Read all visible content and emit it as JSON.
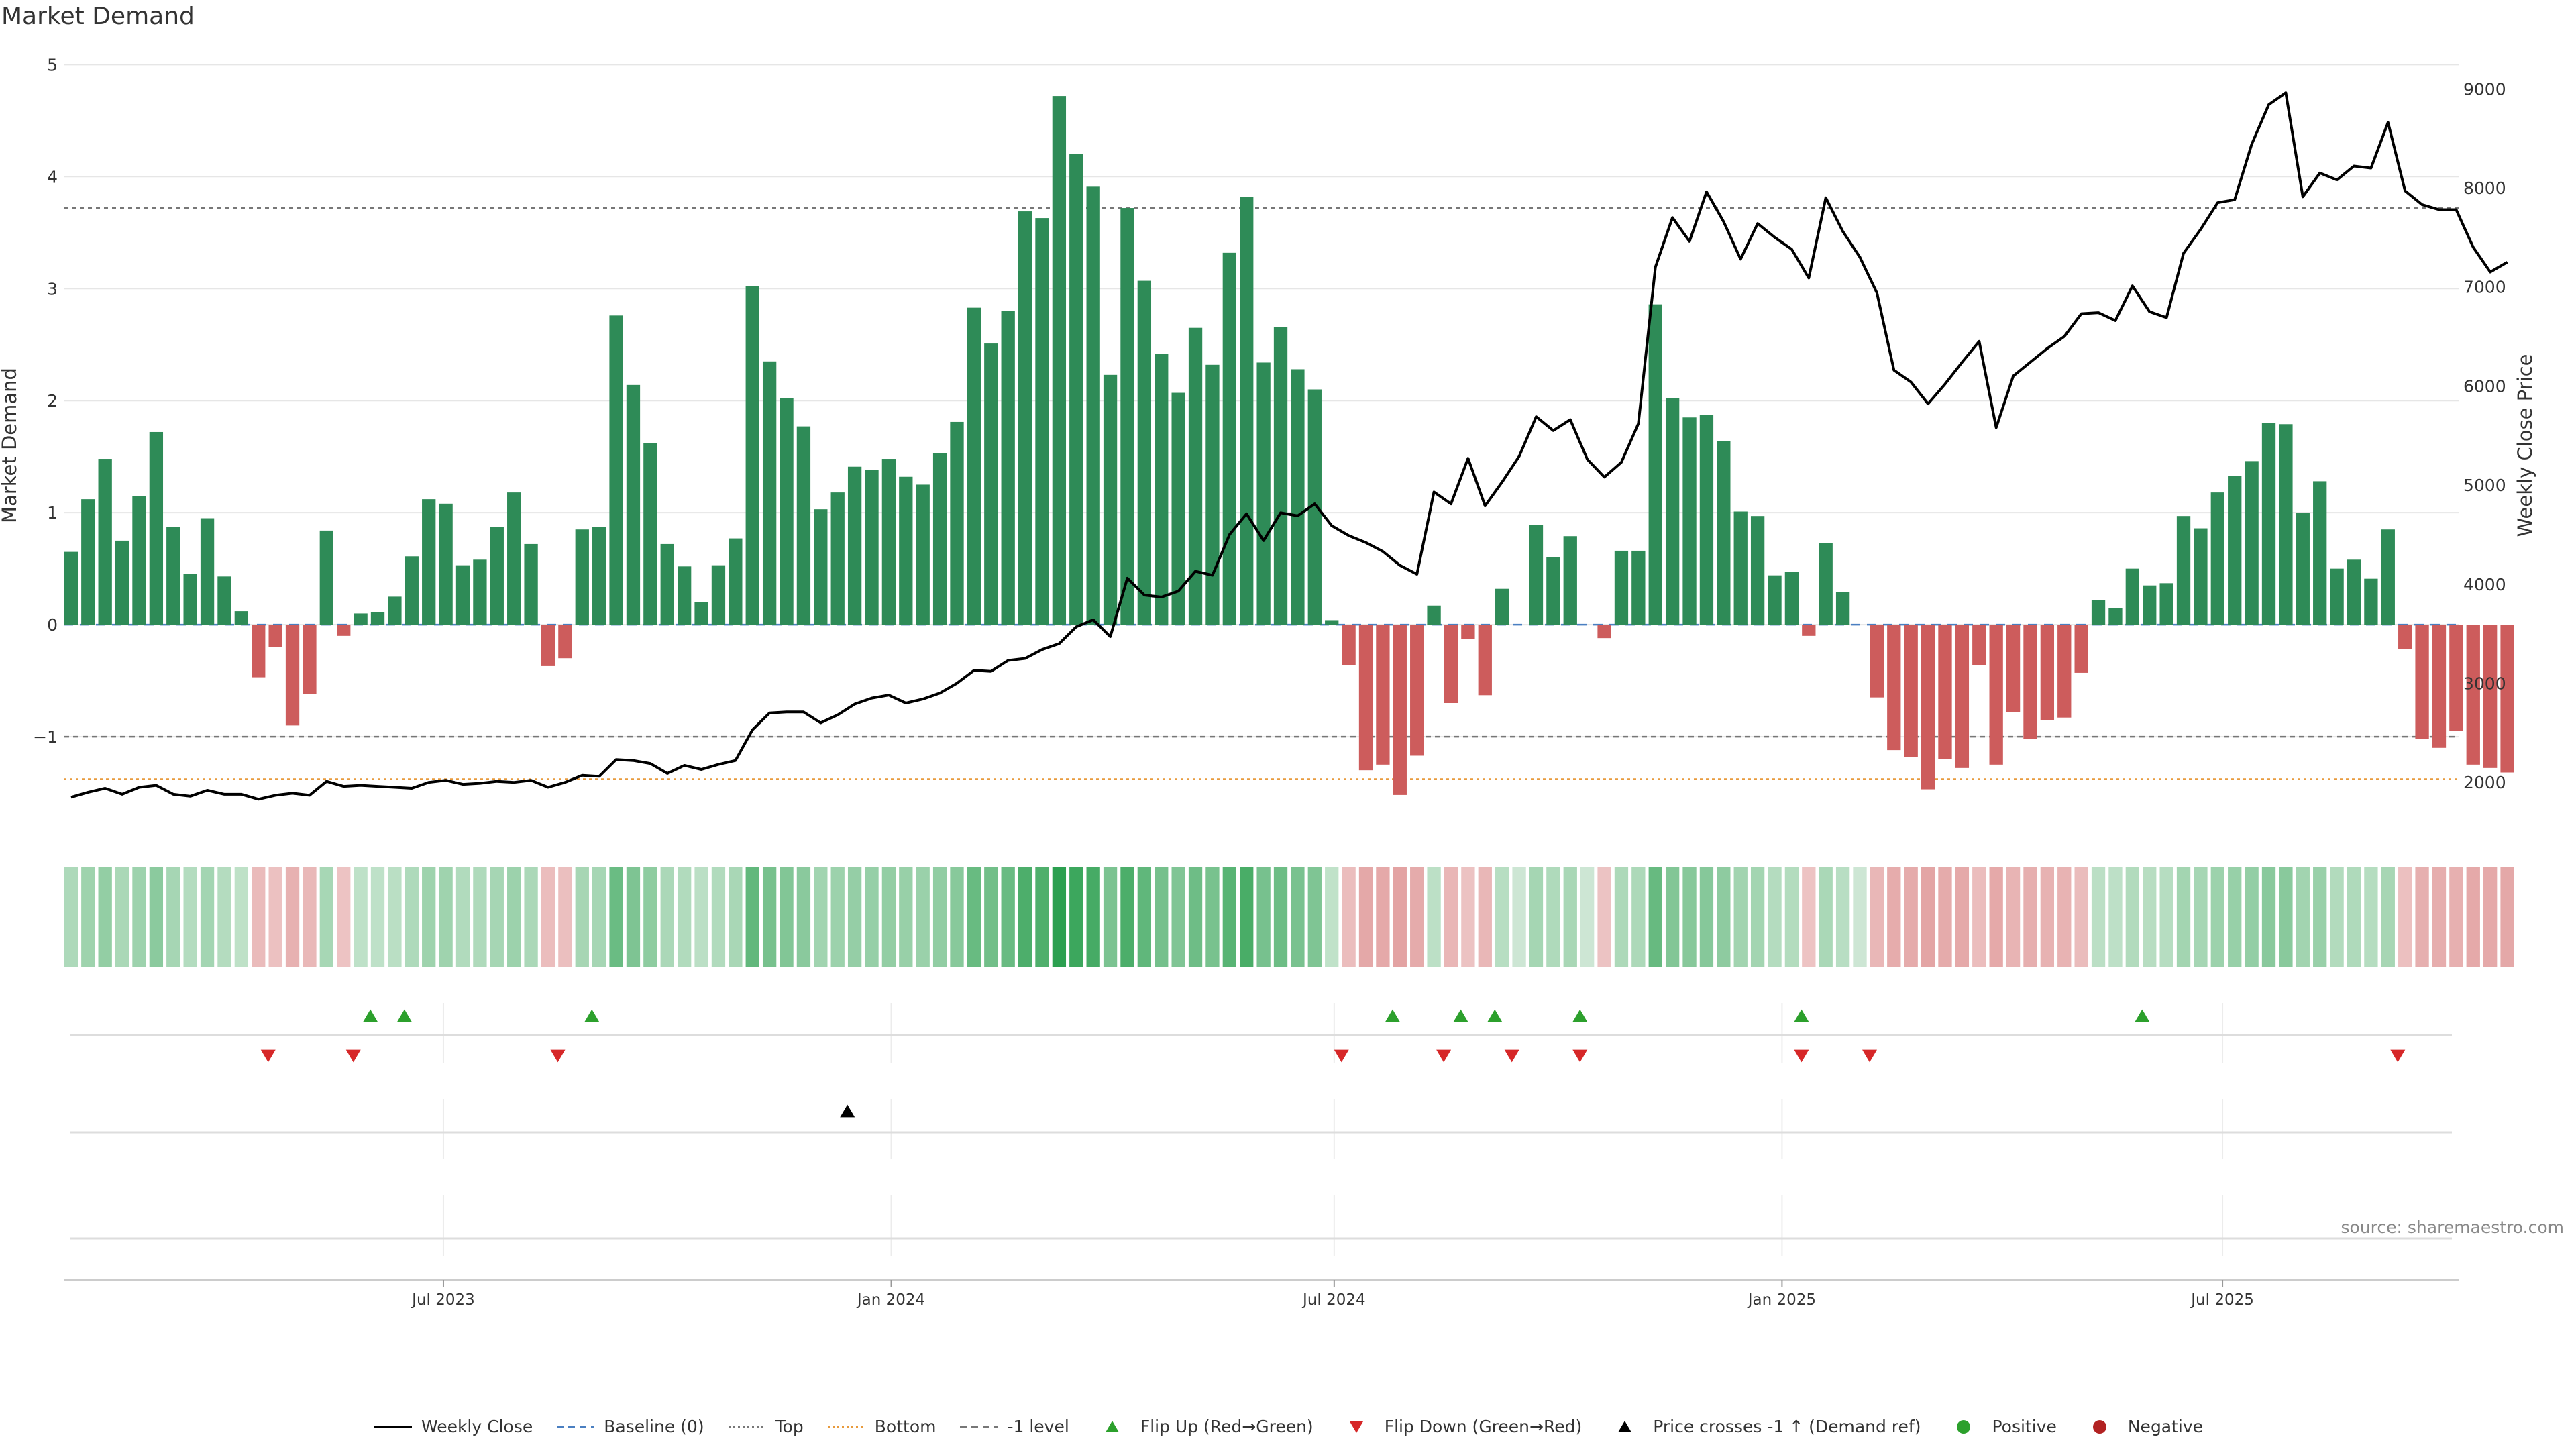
{
  "title": "Market Demand",
  "source": "source: sharemaestro.com",
  "colors": {
    "positive": "#2e8b57",
    "negative": "#cd5c5c",
    "price": "#000000",
    "flip_up": "#2ca02c",
    "flip_down": "#d62728",
    "bottom": "#e89a3c",
    "grid": "#e6e6e6"
  },
  "legend": [
    {
      "label": "Weekly Close",
      "kind": "line-solid",
      "color": "#000000"
    },
    {
      "label": "Baseline (0)",
      "kind": "line-dash",
      "color": "#4a7fc1"
    },
    {
      "label": "Top",
      "kind": "line-dot",
      "color": "#777777"
    },
    {
      "label": "Bottom",
      "kind": "line-dot",
      "color": "#e89a3c"
    },
    {
      "label": "-1 level",
      "kind": "line-dash",
      "color": "#777777"
    },
    {
      "label": "Flip Up (Red→Green)",
      "kind": "tri-up",
      "color": "#2ca02c"
    },
    {
      "label": "Flip Down (Green→Red)",
      "kind": "tri-down",
      "color": "#d62728"
    },
    {
      "label": "Price crosses -1 ↑ (Demand ref)",
      "kind": "tri-up",
      "color": "#000000"
    },
    {
      "label": "Positive",
      "kind": "dot",
      "color": "#2ca02c"
    },
    {
      "label": "Negative",
      "kind": "dot",
      "color": "#b22222"
    }
  ],
  "chart_data": {
    "type": "bar",
    "x_start": "2023-01-29",
    "x_step_days": 7,
    "xlim": [
      "2023-01-26",
      "2025-10-06"
    ],
    "x_ticks": [
      {
        "date": "2023-07-01",
        "label": "Jul 2023"
      },
      {
        "date": "2024-01-01",
        "label": "Jan 2024"
      },
      {
        "date": "2024-07-01",
        "label": "Jul 2024"
      },
      {
        "date": "2025-01-01",
        "label": "Jan 2025"
      },
      {
        "date": "2025-07-01",
        "label": "Jul 2025"
      }
    ],
    "y_left": {
      "label": "Market Demand",
      "lim": [
        -1.85,
        5.05
      ],
      "ticks": [
        -1,
        0,
        1,
        2,
        3,
        4,
        5
      ],
      "tick_labels": [
        "−1",
        "0",
        "1",
        "2",
        "3",
        "4",
        "5"
      ]
    },
    "y_right": {
      "label": "Weekly Close Price",
      "lim": [
        1500,
        9300
      ],
      "ticks": [
        2000,
        3000,
        4000,
        5000,
        6000,
        7000,
        8000,
        9000
      ],
      "tick_labels": [
        "2000",
        "3000",
        "4000",
        "5000",
        "6000",
        "7000",
        "8000",
        "9000"
      ]
    },
    "reference_lines": {
      "top": 3.72,
      "bottom": -1.38,
      "minus_one": -1.0,
      "baseline": 0
    },
    "demand": [
      0.65,
      1.12,
      1.48,
      0.75,
      1.15,
      1.72,
      0.87,
      0.45,
      0.95,
      0.43,
      0.12,
      -0.47,
      -0.2,
      -0.9,
      -0.62,
      0.84,
      -0.1,
      0.1,
      0.11,
      0.25,
      0.61,
      1.12,
      1.08,
      0.53,
      0.58,
      0.87,
      1.18,
      0.72,
      -0.37,
      -0.3,
      0.85,
      0.87,
      2.76,
      2.14,
      1.62,
      0.72,
      0.52,
      0.2,
      0.53,
      0.77,
      3.02,
      2.35,
      2.02,
      1.77,
      1.03,
      1.18,
      1.41,
      1.38,
      1.48,
      1.32,
      1.25,
      1.53,
      1.81,
      2.83,
      2.51,
      2.8,
      3.69,
      3.63,
      4.72,
      4.2,
      3.91,
      2.23,
      3.72,
      3.07,
      2.42,
      2.07,
      2.65,
      2.32,
      3.32,
      3.82,
      2.34,
      2.66,
      2.28,
      2.1,
      0.04,
      -0.36,
      -1.3,
      -1.25,
      -1.52,
      -1.17,
      0.17,
      -0.7,
      -0.13,
      -0.63,
      0.32,
      0.0,
      0.89,
      0.6,
      0.79,
      0.0,
      -0.12,
      0.66,
      0.66,
      2.86,
      2.02,
      1.85,
      1.87,
      1.64,
      1.01,
      0.97,
      0.44,
      0.47,
      -0.1,
      0.73,
      0.29,
      0.0,
      -0.65,
      -1.12,
      -1.18,
      -1.47,
      -1.2,
      -1.28,
      -0.36,
      -1.25,
      -0.78,
      -1.02,
      -0.85,
      -0.83,
      -0.43,
      0.22,
      0.15,
      0.5,
      0.35,
      0.37,
      0.97,
      0.86,
      1.18,
      1.33,
      1.46,
      1.8,
      1.79,
      1.0,
      1.28,
      0.5,
      0.58,
      0.41,
      0.85,
      -0.22,
      -1.02,
      -1.1,
      -0.95,
      -1.25,
      -1.28,
      -1.32
    ],
    "price": [
      1850,
      1900,
      1940,
      1880,
      1950,
      1970,
      1880,
      1860,
      1920,
      1880,
      1880,
      1830,
      1870,
      1890,
      1870,
      2010,
      1960,
      1970,
      1960,
      1950,
      1940,
      2000,
      2020,
      1980,
      1990,
      2010,
      2000,
      2020,
      1950,
      2000,
      2070,
      2060,
      2230,
      2220,
      2190,
      2090,
      2170,
      2130,
      2180,
      2220,
      2530,
      2700,
      2710,
      2710,
      2600,
      2680,
      2790,
      2850,
      2880,
      2800,
      2840,
      2900,
      3000,
      3130,
      3120,
      3230,
      3250,
      3340,
      3400,
      3570,
      3640,
      3470,
      4060,
      3890,
      3870,
      3930,
      4130,
      4090,
      4500,
      4710,
      4440,
      4720,
      4690,
      4810,
      4590,
      4490,
      4420,
      4330,
      4190,
      4100,
      4930,
      4810,
      5270,
      4790,
      5030,
      5290,
      5690,
      5550,
      5660,
      5260,
      5080,
      5230,
      5620,
      7200,
      7700,
      7460,
      7960,
      7660,
      7280,
      7640,
      7500,
      7380,
      7090,
      7900,
      7560,
      7300,
      6940,
      6160,
      6040,
      5820,
      6020,
      6240,
      6450,
      5580,
      6100,
      6240,
      6380,
      6500,
      6730,
      6740,
      6660,
      7010,
      6750,
      6690,
      7340,
      7580,
      7850,
      7880,
      8440,
      8840,
      8960,
      7910,
      8150,
      8080,
      8220,
      8200,
      8660,
      7970,
      7830,
      7780,
      7780,
      7400,
      7150,
      7250
    ],
    "flip_up_dates": [
      "2023-06-01",
      "2023-06-15",
      "2023-08-31",
      "2024-07-25",
      "2024-08-22",
      "2024-09-05",
      "2024-10-10",
      "2025-01-09",
      "2025-05-29"
    ],
    "flip_down_dates": [
      "2023-04-20",
      "2023-05-25",
      "2023-08-17",
      "2024-07-04",
      "2024-08-15",
      "2024-09-12",
      "2024-10-10",
      "2025-01-09",
      "2025-02-06",
      "2025-09-11"
    ],
    "price_cross_dates": [
      "2023-12-14"
    ]
  }
}
